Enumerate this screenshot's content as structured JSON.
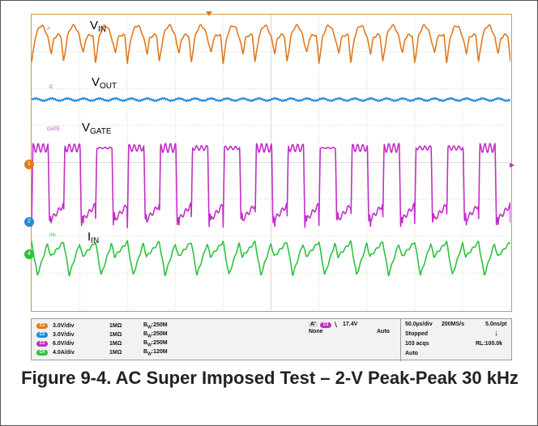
{
  "caption": "Figure 9-4. AC Super Imposed Test – 2-V Peak-Peak 30 kHz",
  "trace_labels": [
    {
      "main": "V",
      "sub": "IN",
      "color": "#e07a1f",
      "tag": "A"
    },
    {
      "main": "V",
      "sub": "OUT",
      "color": "#1f8bd8",
      "tag": "C"
    },
    {
      "main": "V",
      "sub": "GATE",
      "color": "#c22ec8",
      "tag": "GATE"
    },
    {
      "main": "I",
      "sub": "IN",
      "color": "#2cc33c",
      "tag": "IIN"
    }
  ],
  "ground_markers": [
    "1",
    "2",
    "4"
  ],
  "channels": [
    {
      "id": "C1",
      "scale": "3.0V/div",
      "impedance": "1MΩ",
      "bw": "B",
      "bw_sub": "W",
      "bw_val": ":250M",
      "color": "#e07a1f"
    },
    {
      "id": "C2",
      "scale": "3.0V/div",
      "impedance": "1MΩ",
      "bw": "B",
      "bw_sub": "W",
      "bw_val": ":250M",
      "color": "#1f8bd8"
    },
    {
      "id": "C3",
      "scale": "6.0V/div",
      "impedance": "1MΩ",
      "bw": "B",
      "bw_sub": "W",
      "bw_val": ":250M",
      "color": "#c22ec8"
    },
    {
      "id": "C4",
      "scale": "4.0A/div",
      "impedance": "1MΩ",
      "bw": "B",
      "bw_sub": "W",
      "bw_val": ":120M",
      "color": "#2cc33c"
    }
  ],
  "trigger": {
    "mode_label": "A'",
    "source": "C3",
    "level": "17.4V",
    "coupling": "None",
    "sweep": "Auto"
  },
  "timebase": {
    "time_div": "50.0µs/div",
    "sample_rate": "200MS/s",
    "resolution": "5.0ns/pt",
    "state": "Stopped",
    "acqs": "103 acqs",
    "record_length": "RL:100.0k",
    "mode": "Auto"
  },
  "chart_data": {
    "type": "line",
    "title": "Figure 9-4. AC Super Imposed Test – 2-V Peak-Peak 30 kHz",
    "x_units": "divisions",
    "x_range": [
      0,
      10
    ],
    "y_units": "divisions",
    "y_range": [
      -4,
      4
    ],
    "grid": true,
    "series": [
      {
        "name": "VIN",
        "color": "#e07a1f",
        "baseline_div": 3.2,
        "ripple_div": 0.5,
        "periods": 15,
        "shape": "notched-ripple"
      },
      {
        "name": "VOUT",
        "color": "#1f8bd8",
        "baseline_div": 1.7,
        "ripple_div": 0.05,
        "periods": 30,
        "shape": "flat-noise"
      },
      {
        "name": "VGATE",
        "color": "#c22ec8",
        "baseline_div": -0.6,
        "ripple_div": 1.1,
        "periods": 15,
        "shape": "pulse"
      },
      {
        "name": "IIN",
        "color": "#2cc33c",
        "baseline_div": -2.55,
        "ripple_div": 0.5,
        "periods": 15,
        "shape": "sawtooth-dips"
      }
    ]
  }
}
